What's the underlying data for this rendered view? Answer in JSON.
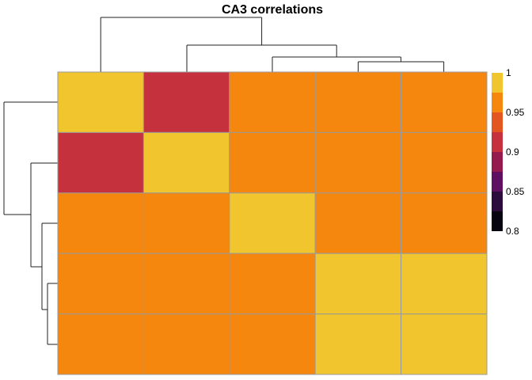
{
  "chart_data": {
    "type": "heatmap",
    "title": "CA3 correlations",
    "xlabel": "",
    "ylabel": "",
    "n": 5,
    "row_labels": [],
    "col_labels": [],
    "values": [
      [
        1.0,
        0.9,
        0.95,
        0.95,
        0.95
      ],
      [
        0.9,
        1.0,
        0.96,
        0.96,
        0.96
      ],
      [
        0.95,
        0.96,
        1.0,
        0.96,
        0.96
      ],
      [
        0.95,
        0.96,
        0.96,
        1.0,
        1.0
      ],
      [
        0.95,
        0.96,
        0.96,
        1.0,
        1.0
      ]
    ],
    "color_range": [
      0.8,
      1.0
    ],
    "legend": {
      "placement": "right",
      "ticks": [
        {
          "value": 1.0,
          "label": "1"
        },
        {
          "value": 0.95,
          "label": "0.95"
        },
        {
          "value": 0.9,
          "label": "0.9"
        },
        {
          "value": 0.85,
          "label": "0.85"
        },
        {
          "value": 0.8,
          "label": "0.8"
        }
      ],
      "bins": [
        {
          "from": 0.975,
          "to": 1.0,
          "color": "#f1c52d"
        },
        {
          "from": 0.95,
          "to": 0.975,
          "color": "#f5870e"
        },
        {
          "from": 0.925,
          "to": 0.95,
          "color": "#e4561f"
        },
        {
          "from": 0.9,
          "to": 0.925,
          "color": "#c5313d"
        },
        {
          "from": 0.875,
          "to": 0.9,
          "color": "#951a4d"
        },
        {
          "from": 0.85,
          "to": 0.875,
          "color": "#5e0f61"
        },
        {
          "from": 0.825,
          "to": 0.85,
          "color": "#2c0c3d"
        },
        {
          "from": 0.8,
          "to": 0.825,
          "color": "#06040f"
        }
      ]
    },
    "cell_border_color": "#9a9a9a",
    "dendrogram_color": "#222222"
  }
}
